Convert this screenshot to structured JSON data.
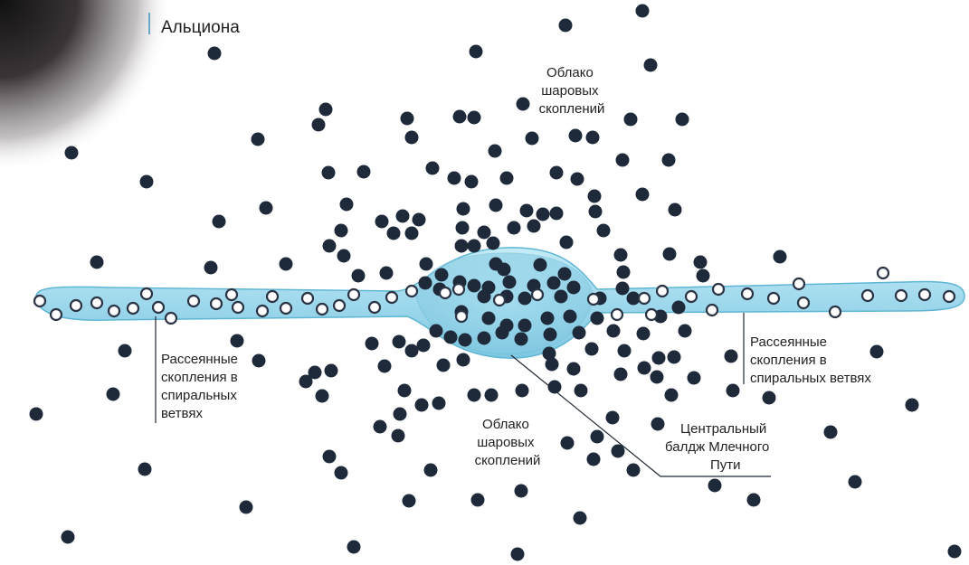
{
  "brand": {
    "name": "Альциона"
  },
  "labels": {
    "globular_cloud_top": [
      "Облако",
      "шаровых",
      "скоплений"
    ],
    "globular_cloud_bottom": [
      "Облако",
      "шаровых",
      "скоплений"
    ],
    "open_clusters_left": [
      "Рассеянные",
      "скопления в",
      "спиральных",
      "ветвях"
    ],
    "open_clusters_right": [
      "Рассеянные",
      "скопления в",
      "спиральных ветвях"
    ],
    "central_bulge": [
      "Центральный",
      "балдж Млечного",
      "Пути"
    ]
  },
  "colors": {
    "globular_cluster": "#1e2a3a",
    "open_cluster_fill": "#ffffff",
    "open_cluster_stroke": "#2a3444",
    "disk_fill": "#a9dcec",
    "disk_stroke": "#5fb6d4",
    "bulge_fill": "#8fd0e6",
    "leader_line": "#1f2733"
  }
}
